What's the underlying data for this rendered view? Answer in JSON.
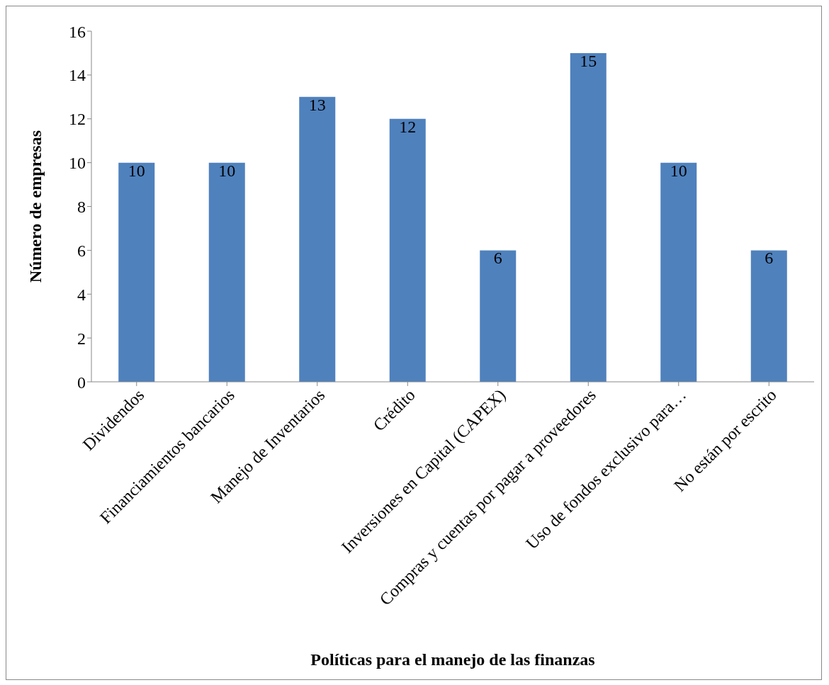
{
  "chart_data": {
    "type": "bar",
    "xlabel": "Políticas para el manejo de las finanzas",
    "ylabel": "Número de empresas",
    "categories": [
      "Dividendos",
      "Financiamientos bancarios",
      "Manejo de Inventarios",
      "Crédito",
      "Inversiones en Capital (CAPEX)",
      "Compras y cuentas por pagar a proveedores",
      "Uso de fondos exclusivo para…",
      "No están por escrito"
    ],
    "values": [
      10,
      10,
      13,
      12,
      6,
      15,
      10,
      6
    ],
    "color": "#4f81bd",
    "ylim": [
      0,
      16
    ],
    "yticks": [
      0,
      2,
      4,
      6,
      8,
      10,
      12,
      14,
      16
    ],
    "data_labels": true
  }
}
